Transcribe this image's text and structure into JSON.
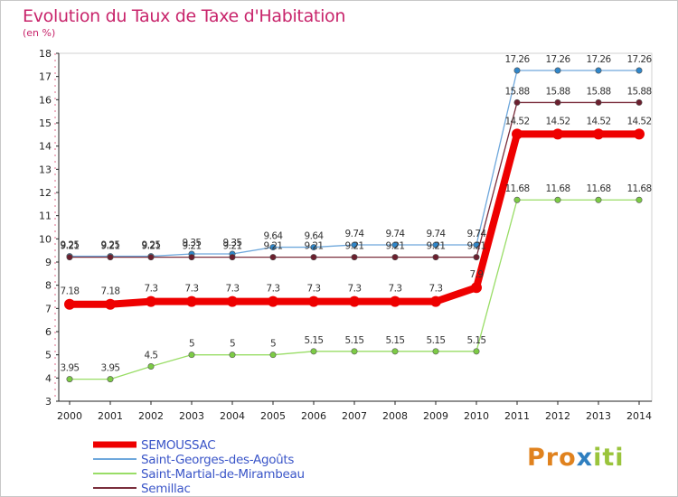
{
  "title": "Evolution du Taux de Taxe d'Habitation",
  "subtitle": "(en %)",
  "logo": {
    "part1": "Pro",
    "part2": "x",
    "part3": "iti"
  },
  "chart_data": {
    "type": "line",
    "x": [
      "2000",
      "2001",
      "2002",
      "2003",
      "2004",
      "2005",
      "2006",
      "2007",
      "2008",
      "2009",
      "2010",
      "2011",
      "2012",
      "2013",
      "2014"
    ],
    "ylim": [
      3,
      18
    ],
    "yticks": [
      3,
      4,
      5,
      6,
      7,
      8,
      9,
      10,
      11,
      12,
      13,
      14,
      15,
      16,
      17,
      18
    ],
    "grid": false,
    "legend_position": "bottom-left",
    "series": [
      {
        "name": "SEMOUSSAC",
        "color": "#ee0000",
        "values": [
          7.18,
          7.18,
          7.3,
          7.3,
          7.3,
          7.3,
          7.3,
          7.3,
          7.3,
          7.3,
          7.9,
          14.52,
          14.52,
          14.52,
          14.52
        ],
        "labels": [
          "7.18",
          "7.18",
          "7.3",
          "7.3",
          "7.3",
          "7.3",
          "7.3",
          "7.3",
          "7.3",
          "7.3",
          "7.9",
          "14.52",
          "14.52",
          "14.52",
          "14.52"
        ]
      },
      {
        "name": "Saint-Georges-des-Agoûts",
        "color": "#6fa8dc",
        "values": [
          9.25,
          9.25,
          9.25,
          9.35,
          9.35,
          9.64,
          9.64,
          9.74,
          9.74,
          9.74,
          9.74,
          17.26,
          17.26,
          17.26,
          17.26
        ],
        "labels": [
          "9.25",
          "9.25",
          "9.25",
          "9.35",
          "9.35",
          "9.64",
          "9.64",
          "9.74",
          "9.74",
          "9.74",
          "9.74",
          "17.26",
          "17.26",
          "17.26",
          "17.26"
        ]
      },
      {
        "name": "Saint-Martial-de-Mirambeau",
        "color": "#99dd66",
        "values": [
          3.95,
          3.95,
          4.5,
          5,
          5,
          5,
          5.15,
          5.15,
          5.15,
          5.15,
          5.15,
          11.68,
          11.68,
          11.68,
          11.68
        ],
        "labels": [
          "3.95",
          "3.95",
          "4.5",
          "5",
          "5",
          "5",
          "5.15",
          "5.15",
          "5.15",
          "5.15",
          "5.15",
          "11.68",
          "11.68",
          "11.68",
          "11.68"
        ]
      },
      {
        "name": "Semillac",
        "color": "#7a2e3c",
        "values": [
          9.21,
          9.21,
          9.21,
          9.21,
          9.21,
          9.21,
          9.21,
          9.21,
          9.21,
          9.21,
          9.21,
          15.88,
          15.88,
          15.88,
          15.88
        ],
        "labels": [
          "9.21",
          "9.21",
          "9.21",
          "9.21",
          "9.21",
          "9.21",
          "9.21",
          "9.21",
          "9.21",
          "9.21",
          "9.21",
          "15.88",
          "15.88",
          "15.88",
          "15.88"
        ]
      }
    ]
  }
}
